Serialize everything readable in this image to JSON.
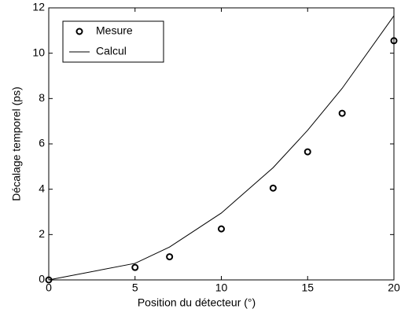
{
  "chart_data": {
    "type": "line",
    "xlabel": "Position du détecteur (°)",
    "ylabel": "Décalage temporel (ps)",
    "x": [
      0,
      5,
      7,
      10,
      13,
      15,
      17,
      20
    ],
    "series": [
      {
        "name": "Mesure",
        "color": "#000000",
        "style": "marker",
        "values": [
          0,
          0.55,
          1.02,
          2.25,
          4.05,
          5.65,
          7.35,
          10.55
        ]
      },
      {
        "name": "Calcul",
        "color": "#000000",
        "style": "line",
        "values": [
          0,
          0.73,
          1.45,
          2.95,
          4.95,
          6.6,
          8.45,
          11.65
        ]
      }
    ],
    "xlim": [
      0,
      20
    ],
    "xticks": [
      0,
      5,
      10,
      15,
      20
    ],
    "ylim": [
      0,
      12
    ],
    "yticks": [
      0,
      2,
      4,
      6,
      8,
      10,
      12
    ],
    "grid": false,
    "legend": "upper left"
  }
}
